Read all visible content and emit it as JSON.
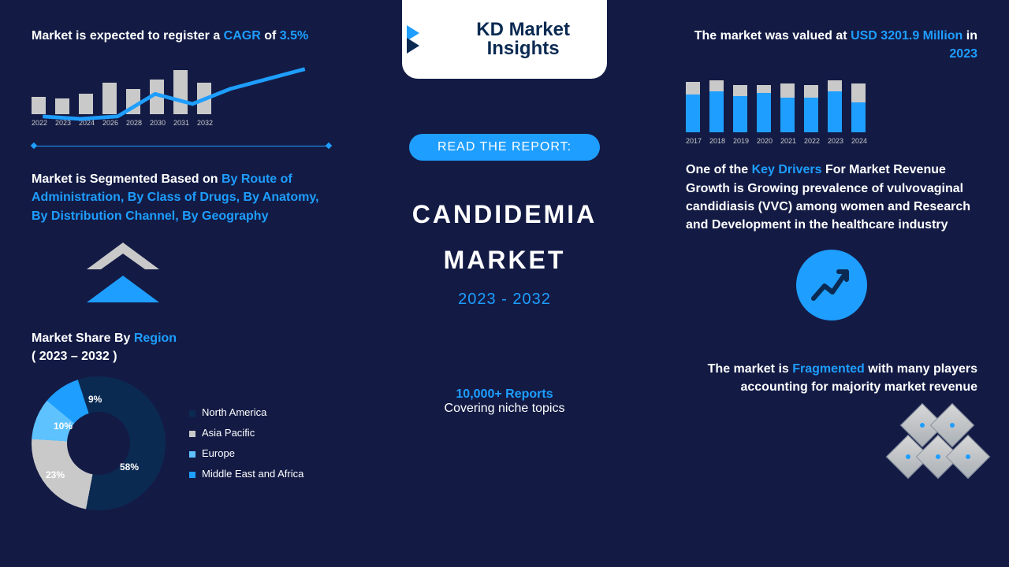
{
  "brand": {
    "name": "KD Market Insights"
  },
  "center": {
    "pill": "READ THE REPORT:",
    "title1": "CANDIDEMIA",
    "title2": "MARKET",
    "range": "2023 - 2032",
    "reports_n": "10,000+ Reports",
    "reports_sub": "Covering niche topics"
  },
  "left": {
    "l1_pre": "Market is expected to register a ",
    "l1_cagr": "CAGR",
    "l1_of": " of ",
    "l1_val": "3.5%",
    "chart_cagr": {
      "type": "bar+line",
      "categories": [
        "2022",
        "2023",
        "2024",
        "2026",
        "2028",
        "2030",
        "2031",
        "2032"
      ],
      "bar_values": [
        22,
        20,
        26,
        40,
        32,
        44,
        56,
        40
      ],
      "line_values": [
        24,
        22,
        24,
        42,
        34,
        46,
        54,
        62
      ],
      "bar_color": "#c9c9c9",
      "line_color": "#1e9eff",
      "line_width": 3,
      "background": "#131b45",
      "label_fontsize": 9,
      "label_color": "#c9c9c9",
      "divider_color": "#1e9eff"
    },
    "l2_pre": "Market is Segmented Based on ",
    "l2_seg": "By Route of Administration, By Class of Drugs, By Anatomy, By Distribution Channel, By Geography",
    "arrow_colors": {
      "top": "#c9c9c9",
      "bottom": "#1e9eff"
    },
    "l3_t1": "Market Share By ",
    "l3_region": "Region",
    "l3_t2": "( 2023 – 2032 )",
    "donut": {
      "type": "donut",
      "segments": [
        {
          "label": "North America",
          "value": 58,
          "color": "#0b2a52"
        },
        {
          "label": "Asia Pacific",
          "value": 23,
          "color": "#c9c9c9"
        },
        {
          "label": "Europe",
          "value": 10,
          "color": "#5ec2ff"
        },
        {
          "label": "Middle East and Africa",
          "value": 9,
          "color": "#1e9eff"
        }
      ],
      "hole_ratio": 0.47,
      "background": "#131b45",
      "label_fontsize": 12,
      "legend_fontsize": 13
    }
  },
  "right": {
    "r1_pre": "The market was valued at ",
    "r1_val": "USD 3201.9 Million",
    "r1_in": " in ",
    "r1_yr": "2023",
    "chart_val": {
      "type": "stacked-bar",
      "categories": [
        "2017",
        "2018",
        "2019",
        "2020",
        "2021",
        "2022",
        "2023",
        "2024"
      ],
      "blue_values": [
        48,
        52,
        46,
        50,
        44,
        44,
        52,
        38
      ],
      "gray_values": [
        16,
        14,
        14,
        10,
        18,
        16,
        14,
        24
      ],
      "blue_color": "#1e9eff",
      "gray_color": "#c9c9c9",
      "background": "#131b45",
      "label_fontsize": 9,
      "label_color": "#c9c9c9"
    },
    "r2_pre": "One of the ",
    "r2_kd": "Key Drivers",
    "r2_rest": " For Market Revenue Growth is Growing prevalence of vulvovaginal candidiasis (VVC) among women and Research and Development in the healthcare industry",
    "growth_icon_bg": "#1e9eff",
    "r3_pre": "The market is ",
    "r3_frag": "Fragmented",
    "r3_rest": " with many players accounting for majority market revenue"
  }
}
